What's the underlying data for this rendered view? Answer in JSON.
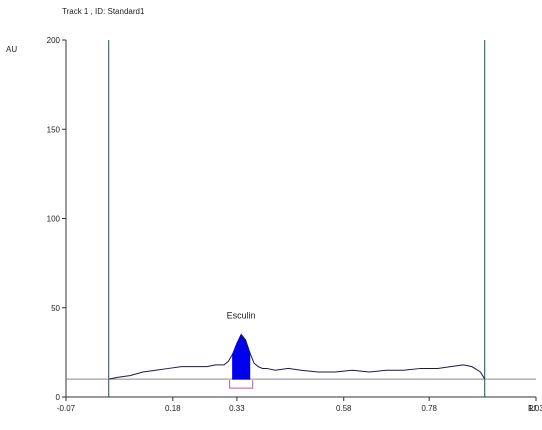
{
  "chart_data": {
    "type": "line",
    "title": "Track 1 , ID: Standard1",
    "xlabel": "Rf",
    "ylabel": "AU",
    "xlim": [
      -0.07,
      1.03
    ],
    "ylim": [
      0,
      200
    ],
    "x_ticks": [
      {
        "value": -0.07,
        "label": "-0.07"
      },
      {
        "value": 0.18,
        "label": "0.18"
      },
      {
        "value": 0.33,
        "label": "0.33"
      },
      {
        "value": 0.58,
        "label": "0.58"
      },
      {
        "value": 0.78,
        "label": "0.78"
      },
      {
        "value": 1.03,
        "label": "1.03"
      }
    ],
    "y_ticks": [
      {
        "value": 0,
        "label": "0"
      },
      {
        "value": 50,
        "label": "50"
      },
      {
        "value": 100,
        "label": "100"
      },
      {
        "value": 150,
        "label": "150"
      },
      {
        "value": 200,
        "label": "200"
      }
    ],
    "application_markers": [
      0.03,
      0.91
    ],
    "baseline": 10,
    "series": [
      {
        "x": [
          0.03,
          0.05,
          0.08,
          0.11,
          0.14,
          0.17,
          0.2,
          0.23,
          0.26,
          0.28,
          0.3,
          0.31,
          0.32,
          0.33,
          0.34,
          0.35,
          0.36,
          0.37,
          0.38,
          0.39,
          0.4,
          0.42,
          0.45,
          0.48,
          0.52,
          0.56,
          0.6,
          0.64,
          0.68,
          0.72,
          0.76,
          0.8,
          0.83,
          0.86,
          0.88,
          0.9,
          0.91
        ],
        "values": [
          10,
          11,
          12,
          14,
          15,
          16,
          17,
          17,
          17,
          18,
          18,
          20,
          24,
          30,
          35,
          32,
          25,
          19,
          17,
          16,
          16,
          15,
          16,
          15,
          14,
          14,
          15,
          14,
          15,
          15,
          16,
          16,
          17,
          18,
          17,
          14,
          10
        ],
        "color": "#1a1a4a"
      }
    ],
    "peaks": [
      {
        "label": "Esculin",
        "start": 0.32,
        "apex": 0.34,
        "end": 0.36,
        "height": 35,
        "color": "#0000ee"
      }
    ],
    "colors": {
      "axis": "#333333",
      "marker": "#1f4f4f",
      "baseline": "#8a8a8a",
      "integration_bracket": "#cc5588"
    },
    "grid": false,
    "legend": "none"
  }
}
